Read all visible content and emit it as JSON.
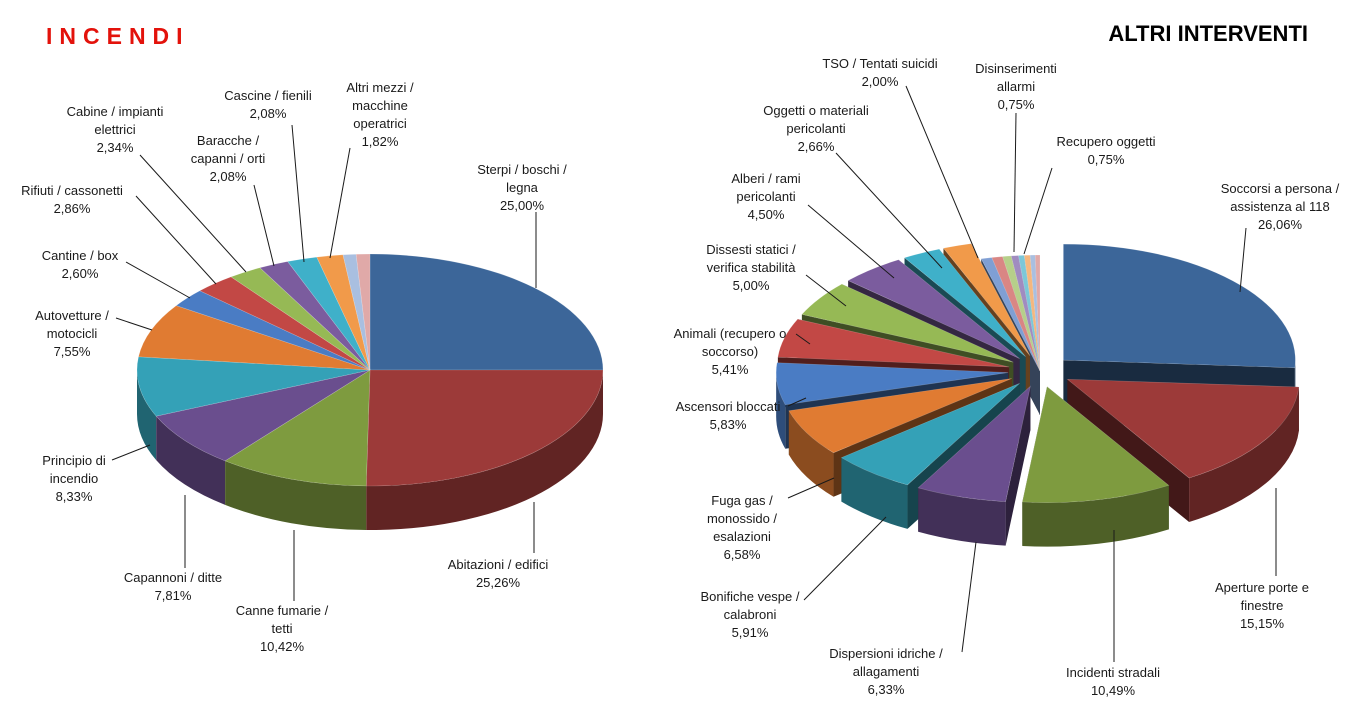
{
  "chart_data": [
    {
      "type": "pie",
      "title": "INCENDI",
      "title_color": "#e3120b",
      "slices": [
        {
          "label": "Sterpi / boschi / legna",
          "value": 25.0,
          "value_label": "25,00%",
          "color": "#3c6699"
        },
        {
          "label": "Abitazioni / edifici",
          "value": 25.26,
          "value_label": "25,26%",
          "color": "#9c3a39"
        },
        {
          "label": "Canne fumarie / tetti",
          "value": 10.42,
          "value_label": "10,42%",
          "color": "#7e9b3f"
        },
        {
          "label": "Capannoni / ditte",
          "value": 7.81,
          "value_label": "7,81%",
          "color": "#6a4e8e"
        },
        {
          "label": "Principio di incendio",
          "value": 8.33,
          "value_label": "8,33%",
          "color": "#34a1b7"
        },
        {
          "label": "Autovetture / motocicli",
          "value": 7.55,
          "value_label": "7,55%",
          "color": "#e07b32"
        },
        {
          "label": "Cantine / box",
          "value": 2.6,
          "value_label": "2,60%",
          "color": "#4a7cc4"
        },
        {
          "label": "Rifiuti / cassonetti",
          "value": 2.86,
          "value_label": "2,86%",
          "color": "#c24845"
        },
        {
          "label": "Cabine / impianti elettrici",
          "value": 2.34,
          "value_label": "2,34%",
          "color": "#96b955"
        },
        {
          "label": "Baracche / capanni / orti",
          "value": 2.08,
          "value_label": "2,08%",
          "color": "#7b5c9e"
        },
        {
          "label": "Cascine / fienili",
          "value": 2.08,
          "value_label": "2,08%",
          "color": "#3fb0c9"
        },
        {
          "label": "Altri mezzi / macchine operatrici",
          "value": 1.82,
          "value_label": "1,82%",
          "color": "#f19a4a"
        },
        {
          "label": "",
          "value": 0.9,
          "value_label": "",
          "color": "#a9bfe0"
        },
        {
          "label": "",
          "value": 0.95,
          "value_label": "",
          "color": "#e0a9a8"
        }
      ]
    },
    {
      "type": "pie",
      "title": "ALTRI INTERVENTI",
      "title_color": "#000000",
      "slices": [
        {
          "label": "Soccorsi a persona / assistenza al 118",
          "value": 26.06,
          "value_label": "26,06%",
          "color": "#3c6699"
        },
        {
          "label": "Aperture porte e finestre",
          "value": 15.15,
          "value_label": "15,15%",
          "color": "#9c3a39"
        },
        {
          "label": "Incidenti stradali",
          "value": 10.49,
          "value_label": "10,49%",
          "color": "#7e9b3f"
        },
        {
          "label": "Dispersioni idriche / allagamenti",
          "value": 6.33,
          "value_label": "6,33%",
          "color": "#6a4e8e"
        },
        {
          "label": "Bonifiche vespe / calabroni",
          "value": 5.91,
          "value_label": "5,91%",
          "color": "#34a1b7"
        },
        {
          "label": "Fuga gas / monossido / esalazioni",
          "value": 6.58,
          "value_label": "6,58%",
          "color": "#e07b32"
        },
        {
          "label": "Ascensori bloccati",
          "value": 5.83,
          "value_label": "5,83%",
          "color": "#4a7cc4"
        },
        {
          "label": "Animali (recupero o soccorso)",
          "value": 5.41,
          "value_label": "5,41%",
          "color": "#c24845"
        },
        {
          "label": "Dissesti statici / verifica stabilità",
          "value": 5.0,
          "value_label": "5,00%",
          "color": "#96b955"
        },
        {
          "label": "Alberi / rami pericolanti",
          "value": 4.5,
          "value_label": "4,50%",
          "color": "#7b5c9e"
        },
        {
          "label": "Oggetti o materiali pericolanti",
          "value": 2.66,
          "value_label": "2,66%",
          "color": "#3fb0c9"
        },
        {
          "label": "TSO / Tentati suicidi",
          "value": 2.0,
          "value_label": "2,00%",
          "color": "#f19a4a"
        },
        {
          "label": "Disinserimenti allarmi",
          "value": 0.75,
          "value_label": "0,75%",
          "color": "#7f9fd4"
        },
        {
          "label": "Recupero oggetti",
          "value": 0.75,
          "value_label": "0,75%",
          "color": "#d98684"
        },
        {
          "label": "",
          "value": 0.6,
          "value_label": "",
          "color": "#b6cf8a"
        },
        {
          "label": "",
          "value": 0.5,
          "value_label": "",
          "color": "#a08cc0"
        },
        {
          "label": "",
          "value": 0.4,
          "value_label": "",
          "color": "#7cc7d8"
        },
        {
          "label": "",
          "value": 0.4,
          "value_label": "",
          "color": "#f5b77e"
        },
        {
          "label": "",
          "value": 0.35,
          "value_label": "",
          "color": "#a9bfe0"
        },
        {
          "label": "",
          "value": 0.33,
          "value_label": "",
          "color": "#e0a9a8"
        }
      ]
    }
  ]
}
